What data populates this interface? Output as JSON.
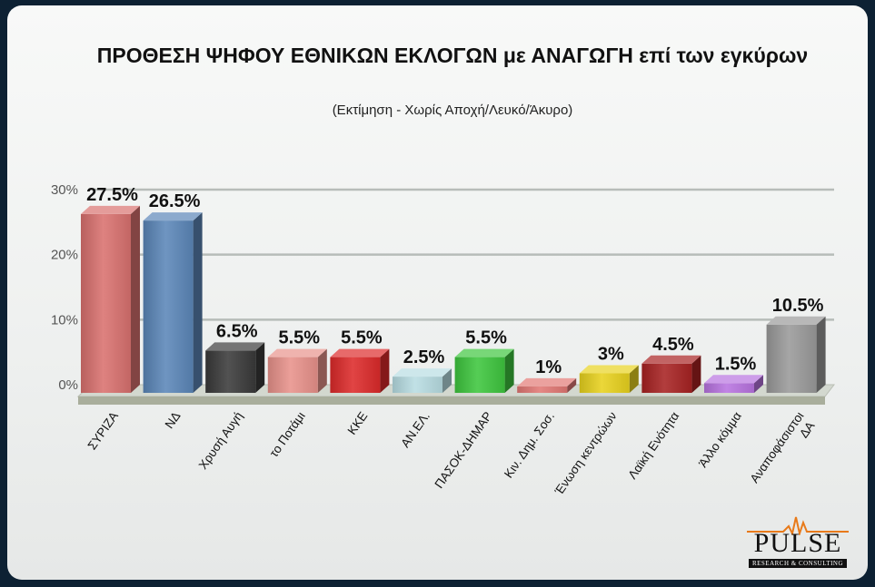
{
  "chart_data": {
    "type": "bar",
    "title": "ΠΡΟΘΕΣΗ ΨΗΦΟΥ ΕΘΝΙΚΩΝ ΕΚΛΟΓΩΝ με ΑΝΑΓΩΓΗ επί των εγκύρων",
    "subtitle": "(Εκτίμηση  -  Χωρίς Αποχή/Λευκό/Άκυρο)",
    "xlabel": "",
    "ylabel": "",
    "ylim": [
      0,
      30
    ],
    "yticks": [
      {
        "value": 0,
        "label": "0%"
      },
      {
        "value": 10,
        "label": "10%"
      },
      {
        "value": 20,
        "label": "20%"
      },
      {
        "value": 30,
        "label": "30%"
      }
    ],
    "grid": true,
    "categories": [
      "ΣΥΡΙΖΑ",
      "ΝΔ",
      "Χρυσή Αυγή",
      "το Ποτάμι",
      "ΚΚΕ",
      "ΑΝ.ΕΛ.",
      "ΠΑΣΟΚ-ΔΗΜΑΡ",
      "Κιν. Δημ. Σοσ.",
      "Ένωση κεντρώων",
      "Λαϊκή Ενότητα",
      "Άλλο κόμμα",
      "Αναποφάσιστοι ΔΑ"
    ],
    "values": [
      27.5,
      26.5,
      6.5,
      5.5,
      5.5,
      2.5,
      5.5,
      1,
      3,
      4.5,
      1.5,
      10.5
    ],
    "value_labels": [
      "27.5%",
      "26.5%",
      "6.5%",
      "5.5%",
      "5.5%",
      "2.5%",
      "5.5%",
      "1%",
      "3%",
      "4.5%",
      "1.5%",
      "10.5%"
    ],
    "colors": [
      "#d9716f",
      "#5b86b8",
      "#3a3a3a",
      "#e8928b",
      "#dd2a2a",
      "#b8dde3",
      "#3ec63e",
      "#e27874",
      "#e8d21e",
      "#a82222",
      "#b873e0",
      "#9a9a9a"
    ]
  },
  "logo": {
    "name": "PULSE",
    "tagline": "RESEARCH & CONSULTING"
  }
}
